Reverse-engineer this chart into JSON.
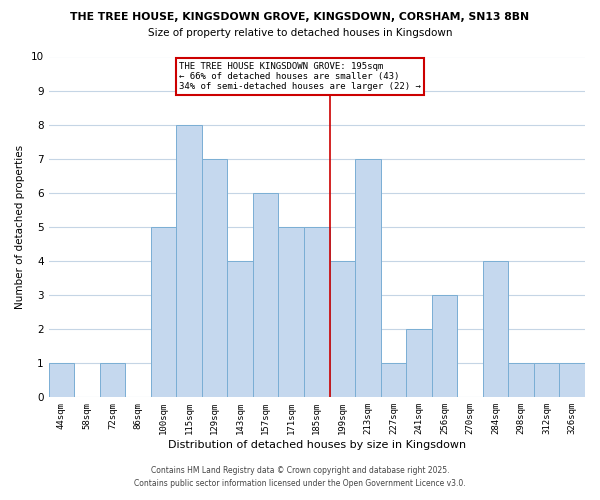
{
  "title": "THE TREE HOUSE, KINGSDOWN GROVE, KINGSDOWN, CORSHAM, SN13 8BN",
  "subtitle": "Size of property relative to detached houses in Kingsdown",
  "xlabel": "Distribution of detached houses by size in Kingsdown",
  "ylabel": "Number of detached properties",
  "bar_labels": [
    "44sqm",
    "58sqm",
    "72sqm",
    "86sqm",
    "100sqm",
    "115sqm",
    "129sqm",
    "143sqm",
    "157sqm",
    "171sqm",
    "185sqm",
    "199sqm",
    "213sqm",
    "227sqm",
    "241sqm",
    "256sqm",
    "270sqm",
    "284sqm",
    "298sqm",
    "312sqm",
    "326sqm"
  ],
  "bar_values": [
    1,
    0,
    1,
    0,
    5,
    8,
    7,
    4,
    6,
    5,
    5,
    4,
    7,
    1,
    2,
    3,
    0,
    4,
    1,
    1,
    1
  ],
  "bar_color": "#c5d8ee",
  "bar_edge_color": "#7aaed4",
  "vline_x_index": 11,
  "vline_color": "#cc0000",
  "ylim": [
    0,
    10
  ],
  "yticks": [
    0,
    1,
    2,
    3,
    4,
    5,
    6,
    7,
    8,
    9,
    10
  ],
  "annotation_text": "THE TREE HOUSE KINGSDOWN GROVE: 195sqm\n← 66% of detached houses are smaller (43)\n34% of semi-detached houses are larger (22) →",
  "annotation_box_edge": "#cc0000",
  "footer_line1": "Contains HM Land Registry data © Crown copyright and database right 2025.",
  "footer_line2": "Contains public sector information licensed under the Open Government Licence v3.0.",
  "background_color": "#ffffff",
  "grid_color": "#c5d5e5"
}
